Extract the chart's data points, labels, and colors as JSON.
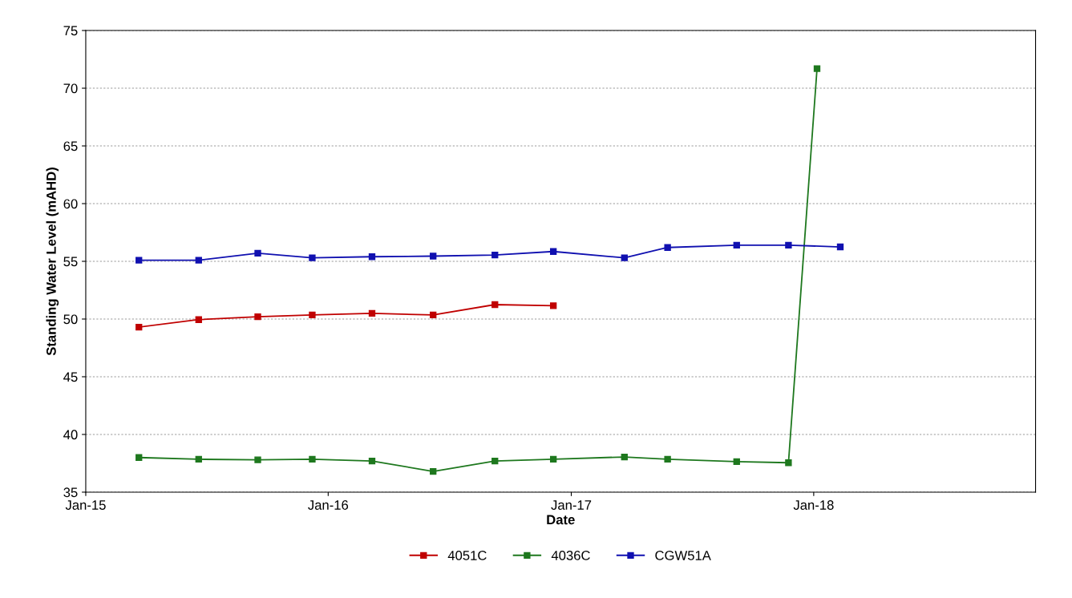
{
  "chart_data": {
    "type": "line",
    "xlabel": "Date",
    "ylabel": "Standing Water Level (mAHD)",
    "xlim": [
      "2015-01-01",
      "2018-12-01"
    ],
    "xticks": [
      {
        "value": "2015-01-01",
        "label": "Jan-15"
      },
      {
        "value": "2016-01-01",
        "label": "Jan-16"
      },
      {
        "value": "2017-01-01",
        "label": "Jan-17"
      },
      {
        "value": "2018-01-01",
        "label": "Jan-18"
      }
    ],
    "ylim": [
      35,
      75
    ],
    "yticks": [
      35,
      40,
      45,
      50,
      55,
      60,
      65,
      70,
      75
    ],
    "grid": "y",
    "legend": "bottom",
    "marker": "square",
    "line_style": "solid",
    "series": [
      {
        "name": "4051C",
        "color": "#c00000",
        "x": [
          "2015-03-22",
          "2015-06-20",
          "2015-09-17",
          "2015-12-08",
          "2016-03-07",
          "2016-06-07",
          "2016-09-08",
          "2016-12-05"
        ],
        "values": [
          49.3,
          49.95,
          50.2,
          50.35,
          50.5,
          50.35,
          51.25,
          51.15
        ]
      },
      {
        "name": "4036C",
        "color": "#1e781e",
        "x": [
          "2015-03-22",
          "2015-06-20",
          "2015-09-17",
          "2015-12-08",
          "2016-03-07",
          "2016-06-07",
          "2016-09-08",
          "2016-12-05",
          "2017-03-22",
          "2017-05-26",
          "2017-09-07",
          "2017-11-24",
          "2018-01-06"
        ],
        "values": [
          38.0,
          37.85,
          37.8,
          37.85,
          37.7,
          36.8,
          37.7,
          37.85,
          38.05,
          37.85,
          37.65,
          37.55,
          71.7
        ]
      },
      {
        "name": "CGW51A",
        "color": "#1010b0",
        "x": [
          "2015-03-22",
          "2015-06-20",
          "2015-09-17",
          "2015-12-08",
          "2016-03-07",
          "2016-06-07",
          "2016-09-08",
          "2016-12-05",
          "2017-03-22",
          "2017-05-26",
          "2017-09-07",
          "2017-11-24",
          "2018-02-10"
        ],
        "values": [
          55.1,
          55.1,
          55.7,
          55.3,
          55.4,
          55.45,
          55.55,
          55.85,
          55.3,
          56.2,
          56.4,
          56.4,
          56.25
        ]
      }
    ]
  }
}
